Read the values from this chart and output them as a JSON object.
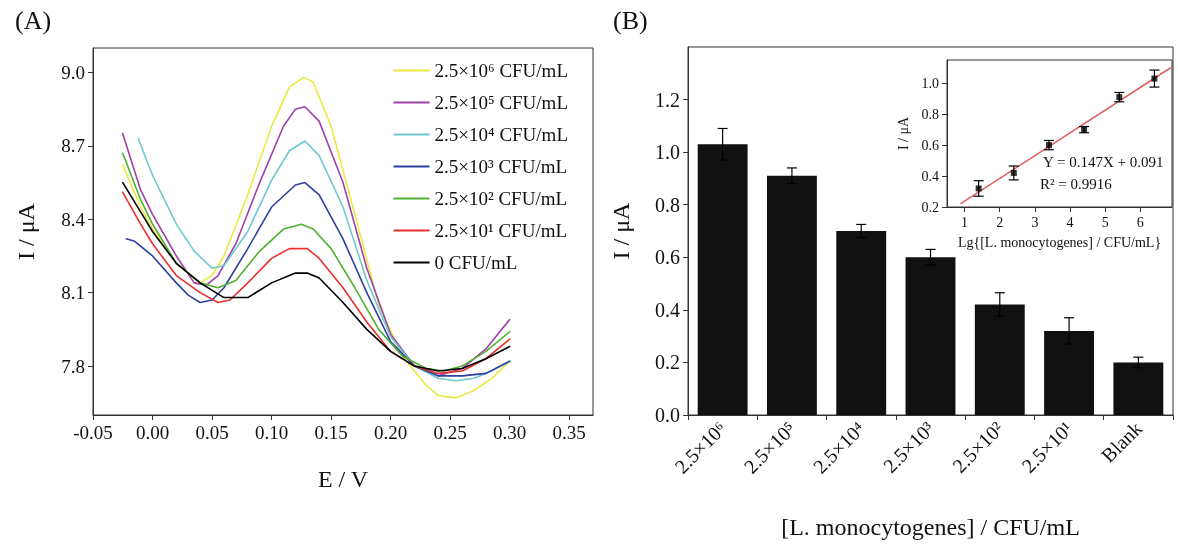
{
  "chart_data": [
    {
      "type": "line",
      "title": "(A)",
      "xlabel": "E / V",
      "ylabel": "I / μA",
      "xlim": [
        -0.05,
        0.37
      ],
      "ylim": [
        7.6,
        9.1
      ],
      "xticks": [
        -0.05,
        {
          "value": 0,
          "label": "0.00"
        },
        0.05,
        {
          "value": 0.1,
          "label": "0.10"
        },
        0.15,
        {
          "value": 0.2,
          "label": "0.20"
        },
        0.25,
        {
          "value": 0.3,
          "label": "0.30"
        },
        0.35
      ],
      "yticks": [
        7.8,
        8.1,
        8.4,
        8.7,
        {
          "value": 9,
          "label": "9.0"
        }
      ],
      "grid": false,
      "legend": "top right",
      "marker": "none",
      "line_style": "solid",
      "series": [
        {
          "name": "2.5×10⁶ CFU/mL",
          "color": "#eaea40",
          "x": [
            -0.025,
            -0.01,
            0,
            0.02,
            0.04,
            0.05,
            0.06,
            0.08,
            0.1,
            0.115,
            0.127,
            0.135,
            0.15,
            0.17,
            0.19,
            0.21,
            0.23,
            0.24,
            0.255,
            0.27,
            0.285,
            0.3
          ],
          "values": [
            8.62,
            8.45,
            8.36,
            8.22,
            8.14,
            8.17,
            8.25,
            8.5,
            8.78,
            8.94,
            8.98,
            8.96,
            8.78,
            8.42,
            8.05,
            7.84,
            7.72,
            7.68,
            7.67,
            7.7,
            7.75,
            7.82
          ]
        },
        {
          "name": "2.5×10⁵ CFU/mL",
          "color": "#a040a8",
          "x": [
            -0.025,
            -0.01,
            0,
            0.02,
            0.035,
            0.045,
            0.055,
            0.07,
            0.09,
            0.11,
            0.12,
            0.128,
            0.14,
            0.16,
            0.18,
            0.2,
            0.22,
            0.24,
            0.26,
            0.28,
            0.3
          ],
          "values": [
            8.75,
            8.52,
            8.42,
            8.25,
            8.14,
            8.13,
            8.17,
            8.3,
            8.55,
            8.78,
            8.85,
            8.86,
            8.8,
            8.55,
            8.2,
            7.93,
            7.8,
            7.76,
            7.79,
            7.87,
            7.99
          ]
        },
        {
          "name": "2.5×10⁴ CFU/mL",
          "color": "#70c8d0",
          "x": [
            -0.012,
            0,
            0.02,
            0.035,
            0.05,
            0.06,
            0.08,
            0.1,
            0.115,
            0.128,
            0.14,
            0.16,
            0.18,
            0.2,
            0.22,
            0.24,
            0.255,
            0.27,
            0.285,
            0.3
          ],
          "values": [
            8.73,
            8.58,
            8.38,
            8.27,
            8.2,
            8.21,
            8.35,
            8.56,
            8.68,
            8.72,
            8.66,
            8.45,
            8.15,
            7.92,
            7.8,
            7.75,
            7.74,
            7.75,
            7.78,
            7.82
          ]
        },
        {
          "name": "2.5×10³ CFU/mL",
          "color": "#3040a0",
          "x": [
            -0.022,
            -0.015,
            0,
            0.02,
            0.03,
            0.04,
            0.05,
            0.06,
            0.08,
            0.1,
            0.12,
            0.128,
            0.14,
            0.16,
            0.18,
            0.2,
            0.22,
            0.24,
            0.26,
            0.28,
            0.3
          ],
          "values": [
            8.32,
            8.31,
            8.25,
            8.14,
            8.09,
            8.06,
            8.07,
            8.12,
            8.28,
            8.45,
            8.54,
            8.55,
            8.5,
            8.32,
            8.1,
            7.9,
            7.8,
            7.76,
            7.76,
            7.77,
            7.82
          ]
        },
        {
          "name": "2.5×10² CFU/mL",
          "color": "#50b030",
          "x": [
            -0.025,
            -0.01,
            0,
            0.02,
            0.04,
            0.055,
            0.07,
            0.09,
            0.11,
            0.125,
            0.135,
            0.15,
            0.17,
            0.19,
            0.21,
            0.23,
            0.245,
            0.26,
            0.28,
            0.3
          ],
          "values": [
            8.67,
            8.48,
            8.38,
            8.22,
            8.14,
            8.12,
            8.15,
            8.27,
            8.36,
            8.38,
            8.36,
            8.28,
            8.12,
            7.95,
            7.84,
            7.79,
            7.78,
            7.8,
            7.86,
            7.94
          ]
        },
        {
          "name": "2.5×10¹ CFU/mL",
          "color": "#e83030",
          "x": [
            -0.025,
            -0.01,
            0,
            0.02,
            0.04,
            0.055,
            0.065,
            0.08,
            0.1,
            0.115,
            0.13,
            0.14,
            0.16,
            0.18,
            0.2,
            0.22,
            0.24,
            0.26,
            0.28,
            0.3
          ],
          "values": [
            8.51,
            8.38,
            8.3,
            8.17,
            8.1,
            8.06,
            8.07,
            8.14,
            8.24,
            8.28,
            8.28,
            8.24,
            8.12,
            7.98,
            7.86,
            7.8,
            7.77,
            7.78,
            7.83,
            7.91
          ]
        },
        {
          "name": "0 CFU/mL",
          "color": "#000000",
          "x": [
            -0.025,
            -0.01,
            0,
            0.02,
            0.04,
            0.06,
            0.08,
            0.1,
            0.12,
            0.13,
            0.14,
            0.16,
            0.18,
            0.2,
            0.22,
            0.24,
            0.26,
            0.28,
            0.3
          ],
          "values": [
            8.55,
            8.43,
            8.35,
            8.22,
            8.14,
            8.08,
            8.08,
            8.14,
            8.18,
            8.18,
            8.16,
            8.06,
            7.95,
            7.86,
            7.8,
            7.78,
            7.79,
            7.83,
            7.88
          ]
        }
      ]
    },
    {
      "type": "bar",
      "title": "(B)",
      "xlabel": "[L. monocytogenes] / CFU/mL",
      "ylabel": "I / μA",
      "ylim": [
        0,
        1.4
      ],
      "yticks": [
        {
          "value": 0,
          "label": "0.0"
        },
        0.2,
        0.4,
        0.6,
        0.8,
        {
          "value": 1,
          "label": "1.0"
        },
        1.2
      ],
      "grid": false,
      "categories": [
        "2.5×10⁶",
        "2.5×10⁵",
        "2.5×10⁴",
        "2.5×10³",
        "2.5×10²",
        "2.5×10¹",
        "Blank"
      ],
      "values": [
        1.03,
        0.91,
        0.7,
        0.6,
        0.42,
        0.32,
        0.2
      ],
      "errors": [
        0.06,
        0.03,
        0.025,
        0.03,
        0.045,
        0.05,
        0.02
      ],
      "color": "#111111"
    },
    {
      "type": "scatter",
      "xlabel": "Lg{[L. monocytogenes] / CFU/mL}",
      "ylabel": "I / μA",
      "xlim": [
        0.5,
        6.9
      ],
      "ylim": [
        0.2,
        1.15
      ],
      "xticks": [
        1,
        2,
        3,
        4,
        5,
        6
      ],
      "yticks": [
        0.2,
        0.4,
        0.6,
        0.8,
        {
          "value": 1,
          "label": "1.0"
        }
      ],
      "grid": false,
      "annotations": [
        "Y = 0.147X + 0.091",
        "R² = 0.9916"
      ],
      "series": [
        {
          "color": "#000000",
          "marker": "square",
          "x": [
            1.4,
            2.4,
            3.4,
            4.4,
            5.4,
            6.4
          ],
          "values": [
            0.32,
            0.42,
            0.6,
            0.7,
            0.91,
            1.03
          ],
          "errors": [
            0.05,
            0.045,
            0.03,
            0.02,
            0.03,
            0.055
          ]
        },
        {
          "type": "line",
          "color": "#e06060",
          "marker": "none",
          "x": [
            0.9,
            6.85
          ],
          "values": [
            0.223,
            1.098
          ]
        }
      ]
    }
  ]
}
